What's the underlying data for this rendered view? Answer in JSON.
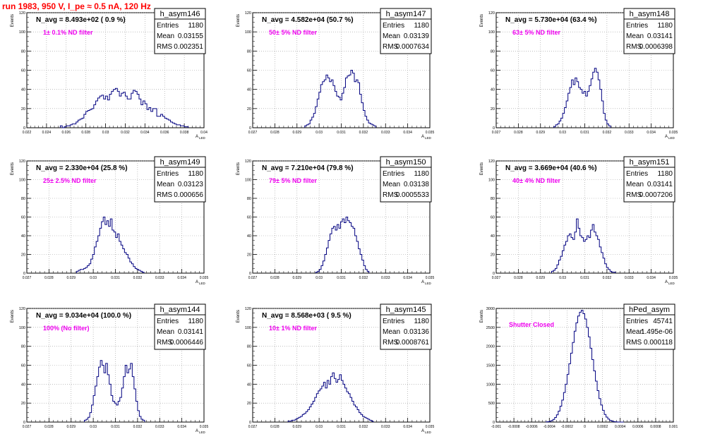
{
  "page": {
    "title": "run 1983,   950 V, I_pe ≈ 0.5 nA, 120 Hz"
  },
  "colors": {
    "histogram": "#000080",
    "annotation": "#ee00ee",
    "title_text": "#ff0000",
    "grid": "#999999"
  },
  "chart_data": [
    {
      "type": "histogram",
      "hist_name": "h_asym146",
      "stats": {
        "entries": "1180",
        "mean": "0.03155",
        "rms": "0.002351"
      },
      "navg_label": "N_avg = 8.493e+02 ( 0.9 %)",
      "annotation": "1± 0.1% ND filter",
      "ylabel": "Events",
      "xlabel_main": "A",
      "xlabel_sub": "LED",
      "xlim": [
        0.022,
        0.04
      ],
      "ylim": [
        0,
        120
      ],
      "yticks": [
        0,
        20,
        40,
        60,
        80,
        100,
        120
      ],
      "xticks": [
        0.022,
        0.024,
        0.026,
        0.028,
        0.03,
        0.032,
        0.034,
        0.036,
        0.038,
        0.04
      ],
      "xtick_labels": [
        "0.022",
        "0.024",
        "0.026",
        "0.028",
        "0.03",
        "0.032",
        "0.034",
        "0.036",
        "0.038",
        "0.04"
      ],
      "grid": true,
      "bin_start": 0.0254,
      "bin_width": 0.0002,
      "counts": [
        2,
        0,
        1,
        2,
        2,
        3,
        4,
        4,
        6,
        8,
        9,
        10,
        14,
        17,
        18,
        19,
        20,
        24,
        28,
        31,
        33,
        34,
        30,
        33,
        29,
        35,
        38,
        40,
        41,
        38,
        33,
        36,
        37,
        33,
        30,
        30,
        36,
        39,
        38,
        35,
        30,
        24,
        28,
        25,
        19,
        21,
        17,
        20,
        20,
        12,
        12,
        14,
        12,
        10,
        9,
        8,
        6,
        5,
        4,
        3,
        3,
        2,
        2,
        1,
        1
      ]
    },
    {
      "type": "histogram",
      "hist_name": "h_asym147",
      "stats": {
        "entries": "1180",
        "mean": "0.03139",
        "rms": "0.0007634"
      },
      "navg_label": "N_avg = 4.582e+04 (50.7 %)",
      "annotation": "50± 5% ND filter",
      "ylabel": "Events",
      "xlabel_main": "A",
      "xlabel_sub": "LED",
      "xlim": [
        0.027,
        0.035
      ],
      "ylim": [
        0,
        120
      ],
      "yticks": [
        0,
        20,
        40,
        60,
        80,
        100,
        120
      ],
      "xticks": [
        0.027,
        0.028,
        0.029,
        0.03,
        0.031,
        0.032,
        0.033,
        0.034,
        0.035
      ],
      "xtick_labels": [
        "0.027",
        "0.028",
        "0.029",
        "0.03",
        "0.031",
        "0.032",
        "0.033",
        "0.034",
        "0.035"
      ],
      "grid": true,
      "bin_start": 0.02935,
      "bin_width": 8e-05,
      "counts": [
        2,
        3,
        4,
        8,
        11,
        15,
        22,
        30,
        37,
        45,
        48,
        50,
        55,
        52,
        48,
        50,
        44,
        38,
        33,
        32,
        29,
        36,
        42,
        52,
        54,
        55,
        60,
        57,
        48,
        50,
        47,
        35,
        26,
        18,
        12,
        8,
        5,
        4,
        3,
        2
      ]
    },
    {
      "type": "histogram",
      "hist_name": "h_asym148",
      "stats": {
        "entries": "1180",
        "mean": "0.03141",
        "rms": "0.0006398"
      },
      "navg_label": "N_avg = 5.730e+04 (63.4 %)",
      "annotation": "63± 5% ND filter",
      "ylabel": "Events",
      "xlabel_main": "A",
      "xlabel_sub": "LED",
      "xlim": [
        0.027,
        0.035
      ],
      "ylim": [
        0,
        120
      ],
      "yticks": [
        0,
        20,
        40,
        60,
        80,
        100,
        120
      ],
      "xticks": [
        0.027,
        0.028,
        0.029,
        0.03,
        0.031,
        0.032,
        0.033,
        0.034,
        0.035
      ],
      "xtick_labels": [
        "0.027",
        "0.028",
        "0.029",
        "0.03",
        "0.031",
        "0.032",
        "0.033",
        "0.034",
        "0.035"
      ],
      "grid": true,
      "bin_start": 0.0296,
      "bin_width": 8e-05,
      "counts": [
        1,
        3,
        4,
        7,
        10,
        15,
        21,
        28,
        36,
        42,
        50,
        45,
        52,
        48,
        42,
        40,
        36,
        38,
        33,
        38,
        44,
        51,
        58,
        62,
        58,
        50,
        40,
        28,
        15,
        8,
        4,
        2
      ]
    },
    {
      "type": "histogram",
      "hist_name": "h_asym149",
      "stats": {
        "entries": "1180",
        "mean": "0.03123",
        "rms": "0.000656"
      },
      "navg_label": "N_avg = 2.330e+04 (25.8 %)",
      "annotation": "25± 2.5% ND filter",
      "ylabel": "Events",
      "xlabel_main": "A",
      "xlabel_sub": "LED",
      "xlim": [
        0.027,
        0.035
      ],
      "ylim": [
        0,
        120
      ],
      "yticks": [
        0,
        20,
        40,
        60,
        80,
        100,
        120
      ],
      "xticks": [
        0.027,
        0.028,
        0.029,
        0.03,
        0.031,
        0.032,
        0.033,
        0.034,
        0.035
      ],
      "xtick_labels": [
        "0.027",
        "0.028",
        "0.029",
        "0.03",
        "0.031",
        "0.032",
        "0.033",
        "0.034",
        "0.035"
      ],
      "grid": true,
      "bin_start": 0.02925,
      "bin_width": 8e-05,
      "counts": [
        2,
        3,
        4,
        4,
        5,
        6,
        8,
        10,
        15,
        20,
        28,
        34,
        40,
        48,
        55,
        60,
        52,
        56,
        50,
        58,
        46,
        44,
        38,
        42,
        34,
        30,
        26,
        22,
        20,
        16,
        12,
        10,
        7,
        5,
        4,
        3,
        2,
        1
      ]
    },
    {
      "type": "histogram",
      "hist_name": "h_asym150",
      "stats": {
        "entries": "1180",
        "mean": "0.03138",
        "rms": "0.0005533"
      },
      "navg_label": "N_avg = 7.210e+04 (79.8 %)",
      "annotation": "79± 5% ND filter",
      "ylabel": "Events",
      "xlabel_main": "A",
      "xlabel_sub": "LED",
      "xlim": [
        0.027,
        0.035
      ],
      "ylim": [
        0,
        120
      ],
      "yticks": [
        0,
        20,
        40,
        60,
        80,
        100,
        120
      ],
      "xticks": [
        0.027,
        0.028,
        0.029,
        0.03,
        0.031,
        0.032,
        0.033,
        0.034,
        0.035
      ],
      "xtick_labels": [
        "0.027",
        "0.028",
        "0.029",
        "0.03",
        "0.031",
        "0.032",
        "0.033",
        "0.034",
        "0.035"
      ],
      "grid": true,
      "bin_start": 0.02985,
      "bin_width": 8e-05,
      "counts": [
        1,
        2,
        4,
        8,
        13,
        20,
        27,
        35,
        42,
        48,
        50,
        46,
        52,
        48,
        55,
        58,
        54,
        60,
        56,
        54,
        50,
        48,
        40,
        34,
        26,
        20,
        14,
        8,
        4,
        2
      ]
    },
    {
      "type": "histogram",
      "hist_name": "h_asym151",
      "stats": {
        "entries": "1180",
        "mean": "0.03141",
        "rms": "0.0007206"
      },
      "navg_label": "N_avg = 3.669e+04 (40.6 %)",
      "annotation": "40± 4% ND filter",
      "ylabel": "Events",
      "xlabel_main": "A",
      "xlabel_sub": "LED",
      "xlim": [
        0.027,
        0.035
      ],
      "ylim": [
        0,
        120
      ],
      "yticks": [
        0,
        20,
        40,
        60,
        80,
        100,
        120
      ],
      "xticks": [
        0.027,
        0.028,
        0.029,
        0.03,
        0.031,
        0.032,
        0.033,
        0.034,
        0.035
      ],
      "xtick_labels": [
        "0.027",
        "0.028",
        "0.029",
        "0.03",
        "0.031",
        "0.032",
        "0.033",
        "0.034",
        "0.035"
      ],
      "grid": true,
      "bin_start": 0.0295,
      "bin_width": 8e-05,
      "counts": [
        2,
        3,
        5,
        9,
        14,
        18,
        24,
        30,
        34,
        40,
        42,
        38,
        36,
        44,
        58,
        48,
        40,
        38,
        34,
        36,
        40,
        38,
        46,
        52,
        44,
        40,
        36,
        28,
        22,
        16,
        10,
        6,
        4,
        2,
        1,
        1
      ]
    },
    {
      "type": "histogram",
      "hist_name": "h_asym144",
      "stats": {
        "entries": "1180",
        "mean": "0.03141",
        "rms": "0.0006446"
      },
      "navg_label": "N_avg = 9.034e+04 (100.0 %)",
      "annotation": "100% (No filter)",
      "ylabel": "Events",
      "xlabel_main": "A",
      "xlabel_sub": "LED",
      "xlim": [
        0.027,
        0.035
      ],
      "ylim": [
        0,
        120
      ],
      "yticks": [
        0,
        20,
        40,
        60,
        80,
        100,
        120
      ],
      "xticks": [
        0.027,
        0.028,
        0.029,
        0.03,
        0.031,
        0.032,
        0.033,
        0.034,
        0.035
      ],
      "xtick_labels": [
        "0.027",
        "0.028",
        "0.029",
        "0.03",
        "0.031",
        "0.032",
        "0.033",
        "0.034",
        "0.035"
      ],
      "grid": true,
      "bin_start": 0.0296,
      "bin_width": 8e-05,
      "counts": [
        2,
        3,
        5,
        10,
        18,
        28,
        38,
        48,
        58,
        65,
        60,
        52,
        62,
        50,
        40,
        28,
        22,
        20,
        18,
        22,
        26,
        36,
        48,
        60,
        52,
        56,
        62,
        48,
        35,
        22,
        12,
        6,
        3,
        2
      ]
    },
    {
      "type": "histogram",
      "hist_name": "h_asym145",
      "stats": {
        "entries": "1180",
        "mean": "0.03136",
        "rms": "0.0008761"
      },
      "navg_label": "N_avg = 8.568e+03 ( 9.5 %)",
      "annotation": "10± 1% ND filter",
      "ylabel": "Events",
      "xlabel_main": "A",
      "xlabel_sub": "LED",
      "xlim": [
        0.027,
        0.035
      ],
      "ylim": [
        0,
        120
      ],
      "yticks": [
        0,
        20,
        40,
        60,
        80,
        100,
        120
      ],
      "xticks": [
        0.027,
        0.028,
        0.029,
        0.03,
        0.031,
        0.032,
        0.033,
        0.034,
        0.035
      ],
      "xtick_labels": [
        "0.027",
        "0.028",
        "0.029",
        "0.03",
        "0.031",
        "0.032",
        "0.033",
        "0.034",
        "0.035"
      ],
      "grid": true,
      "bin_start": 0.0286,
      "bin_width": 8e-05,
      "counts": [
        1,
        1,
        2,
        2,
        3,
        4,
        5,
        6,
        8,
        9,
        11,
        13,
        16,
        19,
        22,
        26,
        30,
        33,
        35,
        38,
        42,
        36,
        44,
        40,
        48,
        52,
        46,
        42,
        45,
        50,
        44,
        40,
        36,
        32,
        30,
        26,
        22,
        18,
        16,
        13,
        10,
        8,
        6,
        5,
        4,
        3,
        2,
        1
      ]
    },
    {
      "type": "histogram",
      "hist_name": "hPed_asym",
      "stats": {
        "entries": "45741",
        "mean": "1.495e-06",
        "rms": "0.000118"
      },
      "navg_label": "",
      "annotation": "Shutter Closed",
      "ylabel": "Events",
      "xlabel_main": "",
      "xlabel_sub": "",
      "xlim": [
        -0.001,
        0.001
      ],
      "ylim": [
        0,
        3000
      ],
      "yticks": [
        0,
        500,
        1000,
        1500,
        2000,
        2500,
        3000
      ],
      "xticks": [
        -0.001,
        -0.0008,
        -0.0006,
        -0.0004,
        -0.0002,
        0,
        0.0002,
        0.0004,
        0.0006,
        0.0008,
        0.001
      ],
      "xtick_labels": [
        "-0.001",
        "-0.0008",
        "-0.0006",
        "-0.0004",
        "-0.0002",
        "0",
        "0.0002",
        "0.0004",
        "0.0006",
        "0.0008",
        "0.001"
      ],
      "grid": true,
      "bin_start": -0.00044,
      "bin_width": 2e-05,
      "counts": [
        5,
        10,
        20,
        40,
        70,
        120,
        190,
        290,
        420,
        580,
        780,
        1000,
        1260,
        1540,
        1820,
        2100,
        2400,
        2620,
        2800,
        2900,
        2950,
        2860,
        2720,
        2500,
        2250,
        1950,
        1650,
        1350,
        1080,
        830,
        620,
        450,
        310,
        200,
        130,
        80,
        45,
        25,
        12,
        6,
        3,
        1,
        0,
        0
      ]
    }
  ]
}
